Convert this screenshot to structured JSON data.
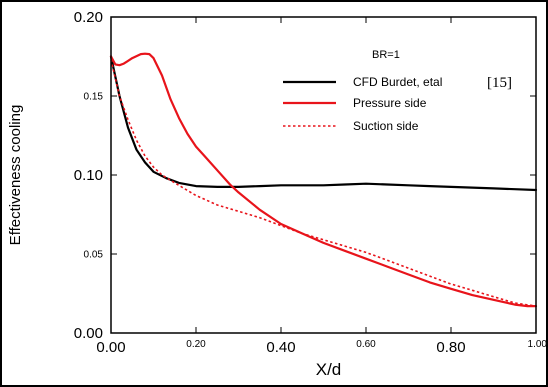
{
  "chart_data": {
    "type": "line",
    "title": "",
    "xlabel": "X/d",
    "ylabel": "Effectiveness cooling",
    "xlim": [
      0,
      1
    ],
    "ylim": [
      0,
      0.2
    ],
    "x_ticks": [
      {
        "value": 0.0,
        "label": "0.00",
        "size": "large"
      },
      {
        "value": 0.2,
        "label": "0.20",
        "size": "small"
      },
      {
        "value": 0.4,
        "label": "0.40",
        "size": "large"
      },
      {
        "value": 0.6,
        "label": "0.60",
        "size": "small"
      },
      {
        "value": 0.8,
        "label": "0.80",
        "size": "large"
      },
      {
        "value": 1.0,
        "label": "1.00",
        "size": "small"
      }
    ],
    "y_ticks": [
      {
        "value": 0.0,
        "label": "0.00",
        "size": "large"
      },
      {
        "value": 0.05,
        "label": "0.05",
        "size": "small"
      },
      {
        "value": 0.1,
        "label": "0.10",
        "size": "large"
      },
      {
        "value": 0.15,
        "label": "0.15",
        "size": "small"
      },
      {
        "value": 0.2,
        "label": "0.20",
        "size": "large"
      }
    ],
    "grid": false,
    "legend": {
      "placement": "top-right",
      "title": "BR=1",
      "reference": "[15]"
    },
    "series": [
      {
        "name": "CFD Burdet, etal",
        "color": "#000000",
        "style": "solid",
        "points": [
          [
            0.0,
            0.175
          ],
          [
            0.02,
            0.15
          ],
          [
            0.04,
            0.13
          ],
          [
            0.06,
            0.116
          ],
          [
            0.08,
            0.108
          ],
          [
            0.1,
            0.102
          ],
          [
            0.13,
            0.098
          ],
          [
            0.16,
            0.095
          ],
          [
            0.2,
            0.093
          ],
          [
            0.25,
            0.0925
          ],
          [
            0.3,
            0.0925
          ],
          [
            0.35,
            0.093
          ],
          [
            0.4,
            0.0935
          ],
          [
            0.45,
            0.0935
          ],
          [
            0.5,
            0.0935
          ],
          [
            0.55,
            0.094
          ],
          [
            0.6,
            0.0945
          ],
          [
            0.65,
            0.094
          ],
          [
            0.7,
            0.0935
          ],
          [
            0.75,
            0.093
          ],
          [
            0.8,
            0.0925
          ],
          [
            0.85,
            0.092
          ],
          [
            0.9,
            0.0915
          ],
          [
            0.95,
            0.091
          ],
          [
            1.0,
            0.0905
          ]
        ]
      },
      {
        "name": "Pressure side",
        "color": "#e8141b",
        "style": "solid",
        "points": [
          [
            0.0,
            0.175
          ],
          [
            0.01,
            0.17
          ],
          [
            0.02,
            0.1695
          ],
          [
            0.03,
            0.1705
          ],
          [
            0.05,
            0.174
          ],
          [
            0.07,
            0.1765
          ],
          [
            0.08,
            0.1768
          ],
          [
            0.09,
            0.1765
          ],
          [
            0.1,
            0.174
          ],
          [
            0.12,
            0.163
          ],
          [
            0.14,
            0.148
          ],
          [
            0.16,
            0.136
          ],
          [
            0.18,
            0.126
          ],
          [
            0.2,
            0.118
          ],
          [
            0.22,
            0.112
          ],
          [
            0.25,
            0.103
          ],
          [
            0.28,
            0.094
          ],
          [
            0.3,
            0.089
          ],
          [
            0.35,
            0.078
          ],
          [
            0.4,
            0.069
          ],
          [
            0.45,
            0.063
          ],
          [
            0.5,
            0.057
          ],
          [
            0.55,
            0.052
          ],
          [
            0.6,
            0.047
          ],
          [
            0.65,
            0.042
          ],
          [
            0.7,
            0.037
          ],
          [
            0.75,
            0.032
          ],
          [
            0.8,
            0.028
          ],
          [
            0.85,
            0.024
          ],
          [
            0.9,
            0.021
          ],
          [
            0.95,
            0.018
          ],
          [
            0.98,
            0.017
          ],
          [
            1.0,
            0.017
          ]
        ]
      },
      {
        "name": "Suction side",
        "color": "#e8141b",
        "style": "dotted",
        "points": [
          [
            0.0,
            0.173
          ],
          [
            0.02,
            0.15
          ],
          [
            0.04,
            0.135
          ],
          [
            0.06,
            0.122
          ],
          [
            0.08,
            0.112
          ],
          [
            0.1,
            0.105
          ],
          [
            0.12,
            0.1
          ],
          [
            0.15,
            0.095
          ],
          [
            0.2,
            0.087
          ],
          [
            0.25,
            0.081
          ],
          [
            0.3,
            0.077
          ],
          [
            0.35,
            0.073
          ],
          [
            0.4,
            0.068
          ],
          [
            0.45,
            0.063
          ],
          [
            0.5,
            0.059
          ],
          [
            0.55,
            0.055
          ],
          [
            0.6,
            0.051
          ],
          [
            0.65,
            0.046
          ],
          [
            0.7,
            0.041
          ],
          [
            0.75,
            0.036
          ],
          [
            0.8,
            0.031
          ],
          [
            0.85,
            0.027
          ],
          [
            0.9,
            0.023
          ],
          [
            0.95,
            0.019
          ],
          [
            1.0,
            0.017
          ]
        ]
      }
    ]
  }
}
